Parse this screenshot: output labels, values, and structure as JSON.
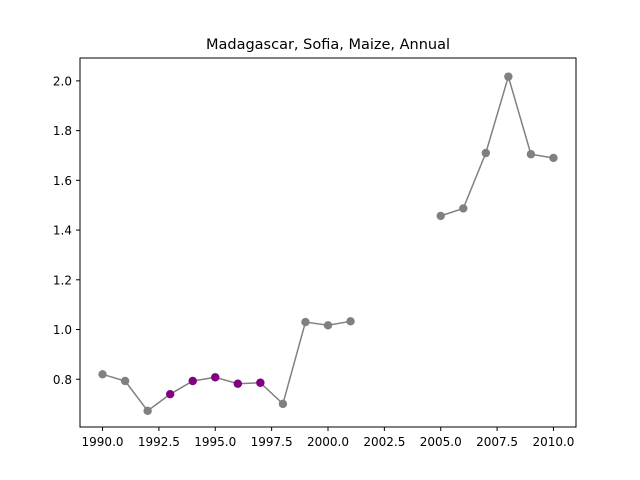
{
  "chart_data": {
    "type": "line",
    "title": "Madagascar, Sofia, Maize, Annual",
    "xlabel": "",
    "ylabel": "",
    "xlim": [
      1989.0,
      2011.0
    ],
    "ylim": [
      0.608,
      2.092
    ],
    "xticks": [
      1990.0,
      1992.5,
      1995.0,
      1997.5,
      2000.0,
      2002.5,
      2005.0,
      2007.5,
      2010.0
    ],
    "xtick_labels": [
      "1990.0",
      "1992.5",
      "1995.0",
      "1997.5",
      "2000.0",
      "2002.5",
      "2005.0",
      "2007.5",
      "2010.0"
    ],
    "yticks": [
      0.8,
      1.0,
      1.2,
      1.4,
      1.6,
      1.8,
      2.0
    ],
    "ytick_labels": [
      "0.8",
      "1.0",
      "1.2",
      "1.4",
      "1.6",
      "1.8",
      "2.0"
    ],
    "grid": false,
    "line_color": "#808080",
    "default_marker_color": "#808080",
    "highlight_marker_color": "#800080",
    "segments": [
      {
        "x": [
          1990,
          1991,
          1992,
          1993,
          1994,
          1995,
          1996,
          1997,
          1998,
          1999,
          2000,
          2001
        ],
        "y": [
          0.82,
          0.793,
          0.673,
          0.74,
          0.793,
          0.808,
          0.782,
          0.786,
          0.701,
          1.03,
          1.017,
          1.033
        ],
        "highlight": [
          false,
          false,
          false,
          true,
          true,
          true,
          true,
          true,
          false,
          false,
          false,
          false
        ]
      },
      {
        "x": [
          2005,
          2006,
          2007,
          2008,
          2009,
          2010
        ],
        "y": [
          1.457,
          1.487,
          1.71,
          2.017,
          1.705,
          1.69
        ],
        "highlight": [
          false,
          false,
          false,
          false,
          false,
          false
        ]
      }
    ]
  }
}
